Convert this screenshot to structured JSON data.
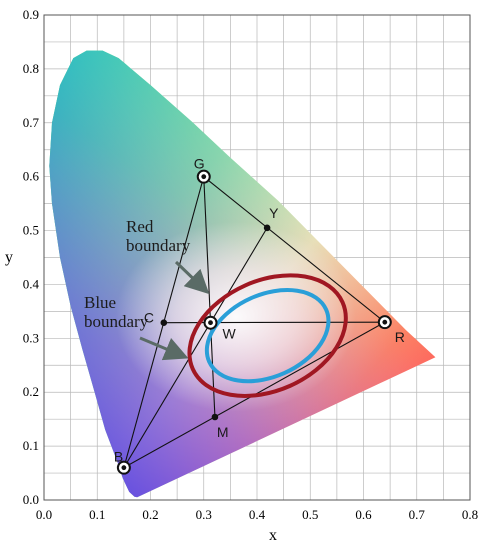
{
  "chart_data": {
    "type": "scatter",
    "xlabel": "x",
    "ylabel": "y",
    "xlim": [
      0.0,
      0.8
    ],
    "ylim": [
      0.0,
      0.9
    ],
    "grid": true,
    "x_ticks": [
      "0.0",
      "0.1",
      "0.2",
      "0.3",
      "0.4",
      "0.5",
      "0.6",
      "0.7",
      "0.8"
    ],
    "y_ticks": [
      "0.0",
      "0.1",
      "0.2",
      "0.3",
      "0.4",
      "0.5",
      "0.6",
      "0.7",
      "0.8",
      "0.9"
    ],
    "spectral_locus": [
      [
        0.175,
        0.005
      ],
      [
        0.17,
        0.006
      ],
      [
        0.16,
        0.015
      ],
      [
        0.148,
        0.04
      ],
      [
        0.138,
        0.07
      ],
      [
        0.115,
        0.13
      ],
      [
        0.095,
        0.2
      ],
      [
        0.072,
        0.28
      ],
      [
        0.05,
        0.36
      ],
      [
        0.03,
        0.45
      ],
      [
        0.015,
        0.55
      ],
      [
        0.01,
        0.62
      ],
      [
        0.015,
        0.7
      ],
      [
        0.03,
        0.77
      ],
      [
        0.055,
        0.82
      ],
      [
        0.08,
        0.834
      ],
      [
        0.11,
        0.834
      ],
      [
        0.14,
        0.82
      ],
      [
        0.2,
        0.77
      ],
      [
        0.28,
        0.7
      ],
      [
        0.35,
        0.635
      ],
      [
        0.44,
        0.555
      ],
      [
        0.52,
        0.475
      ],
      [
        0.6,
        0.395
      ],
      [
        0.68,
        0.315
      ],
      [
        0.735,
        0.265
      ]
    ],
    "points": [
      {
        "label": "G",
        "x": 0.3,
        "y": 0.6,
        "marker": "ring"
      },
      {
        "label": "R",
        "x": 0.64,
        "y": 0.33,
        "marker": "ring"
      },
      {
        "label": "B",
        "x": 0.15,
        "y": 0.06,
        "marker": "ring"
      },
      {
        "label": "W",
        "x": 0.3127,
        "y": 0.329,
        "marker": "ring"
      },
      {
        "label": "Y",
        "x": 0.419,
        "y": 0.505,
        "marker": "dot"
      },
      {
        "label": "C",
        "x": 0.225,
        "y": 0.329,
        "marker": "dot"
      },
      {
        "label": "M",
        "x": 0.321,
        "y": 0.154,
        "marker": "dot"
      }
    ],
    "annotations": [
      {
        "text": "Red\nboundary",
        "color": "#a01722"
      },
      {
        "text": "Blue\nboundary",
        "color": "#2a9fd8"
      }
    ],
    "colors": {
      "red_boundary": "#a01722",
      "blue_boundary": "#2a9fd8",
      "arrow": "#5a6b66",
      "grid": "#b8b8b8"
    }
  }
}
